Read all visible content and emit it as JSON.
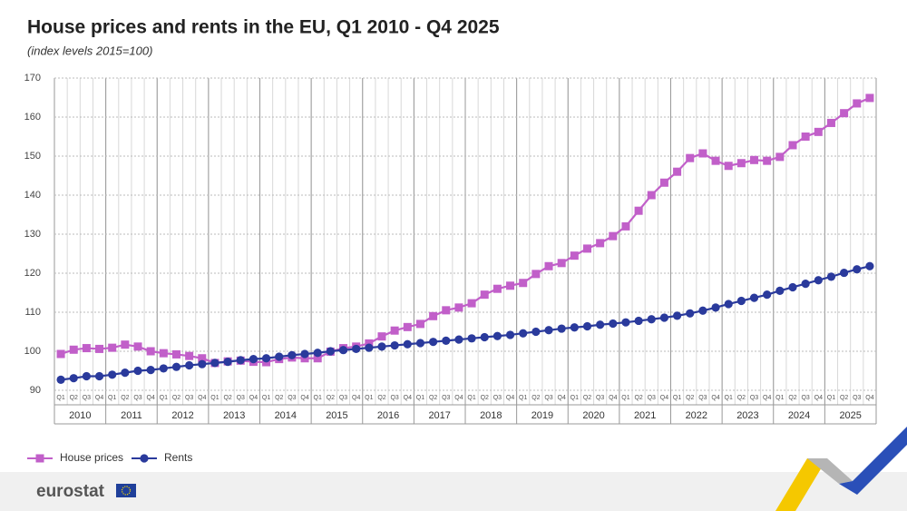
{
  "chart_data": {
    "type": "line",
    "title": "House prices and rents in the EU, Q1 2010 - Q4 2025",
    "subtitle": "(index levels 2015=100)",
    "categories": [
      "Q1",
      "Q2",
      "Q3",
      "Q4",
      "Q1",
      "Q2",
      "Q3",
      "Q4",
      "Q1",
      "Q2",
      "Q3",
      "Q4",
      "Q1",
      "Q2",
      "Q3",
      "Q4",
      "Q1",
      "Q2",
      "Q3",
      "Q4",
      "Q1",
      "Q2",
      "Q3",
      "Q4",
      "Q1",
      "Q2",
      "Q3",
      "Q4",
      "Q1",
      "Q2",
      "Q3",
      "Q4",
      "Q1",
      "Q2",
      "Q3",
      "Q4",
      "Q1",
      "Q2",
      "Q3",
      "Q4",
      "Q1",
      "Q2",
      "Q3",
      "Q4",
      "Q1",
      "Q2",
      "Q3",
      "Q4",
      "Q1",
      "Q2",
      "Q3",
      "Q4",
      "Q1",
      "Q2",
      "Q3",
      "Q4",
      "Q1",
      "Q2",
      "Q3",
      "Q4",
      "Q1",
      "Q2",
      "Q3",
      "Q4"
    ],
    "years": [
      "2010",
      "2011",
      "2012",
      "2013",
      "2014",
      "2015",
      "2016",
      "2017",
      "2018",
      "2019",
      "2020",
      "2021",
      "2022",
      "2023",
      "2024",
      "2025"
    ],
    "ylim": [
      90,
      170
    ],
    "yticks": [
      90,
      100,
      110,
      120,
      130,
      140,
      150,
      160,
      170
    ],
    "grid": true,
    "series": [
      {
        "name": "House prices",
        "color": "#c15fc9",
        "marker": "square",
        "values": [
          99.3,
          100.4,
          100.8,
          100.6,
          100.9,
          101.7,
          101.2,
          100.0,
          99.5,
          99.2,
          98.8,
          98.2,
          97.0,
          97.4,
          97.6,
          97.3,
          97.2,
          98.0,
          98.4,
          98.2,
          98.2,
          99.9,
          100.8,
          101.2,
          102.0,
          103.8,
          105.3,
          106.2,
          107.0,
          109.0,
          110.5,
          111.2,
          112.3,
          114.5,
          116.0,
          116.8,
          117.5,
          119.8,
          121.8,
          122.6,
          124.5,
          126.3,
          127.7,
          129.5,
          132.0,
          136.0,
          140.0,
          143.2,
          146.0,
          149.5,
          150.7,
          148.8,
          147.5,
          148.2,
          149.0,
          148.8,
          149.8,
          152.8,
          155.0,
          156.2,
          158.5,
          161.0,
          163.5,
          164.9
        ]
      },
      {
        "name": "Rents",
        "color": "#2a3a9c",
        "marker": "circle",
        "values": [
          92.7,
          93.1,
          93.6,
          93.6,
          94.0,
          94.5,
          95.0,
          95.2,
          95.6,
          96.0,
          96.4,
          96.7,
          97.0,
          97.3,
          97.7,
          98.0,
          98.2,
          98.6,
          99.0,
          99.3,
          99.6,
          100.0,
          100.3,
          100.6,
          100.9,
          101.2,
          101.5,
          101.8,
          102.1,
          102.4,
          102.7,
          103.0,
          103.3,
          103.6,
          103.9,
          104.2,
          104.6,
          105.0,
          105.4,
          105.8,
          106.1,
          106.4,
          106.8,
          107.1,
          107.4,
          107.8,
          108.2,
          108.6,
          109.1,
          109.7,
          110.4,
          111.2,
          112.1,
          112.9,
          113.7,
          114.5,
          115.5,
          116.4,
          117.3,
          118.2,
          119.1,
          120.1,
          121.0,
          121.8
        ]
      }
    ],
    "source_logo": "eurostat"
  }
}
